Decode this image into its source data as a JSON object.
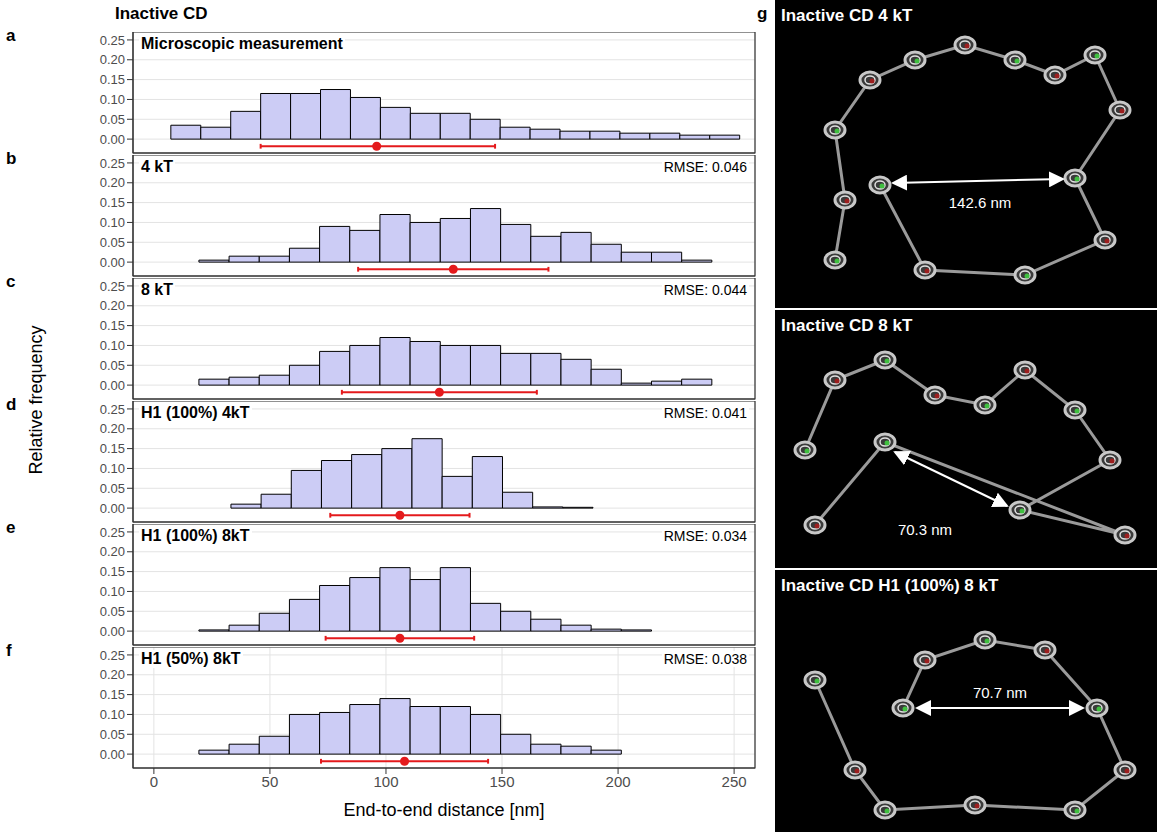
{
  "title": "Inactive CD",
  "x_label": "End-to-end distance [nm]",
  "y_label": "Relative frequency",
  "chart_data": [
    {
      "panel": "a",
      "type": "histogram",
      "title": "Microscopic measurement",
      "color": "#ccccf5",
      "grid": true,
      "tick_labels": "y",
      "bins": [
        -5.6,
        7.3,
        20.2,
        33.1,
        46.0,
        58.9,
        71.8,
        84.7,
        97.6,
        110.5,
        123.4,
        136.3,
        149.2,
        162.1,
        175.0,
        187.9,
        200.8,
        213.7,
        226.6,
        239.5,
        252.4
      ],
      "values": [
        0,
        0.035,
        0.03,
        0.07,
        0.115,
        0.115,
        0.125,
        0.105,
        0.08,
        0.065,
        0.065,
        0.05,
        0.03,
        0.025,
        0.02,
        0.02,
        0.015,
        0.015,
        0.01,
        0.01
      ],
      "mean": 96,
      "error_low": 46,
      "error_high": 147,
      "xlim": [
        -9,
        259
      ],
      "xticks": [
        0,
        50,
        100,
        150,
        200,
        250
      ],
      "ylim": [
        -0.035,
        0.27
      ],
      "yticks": [
        {
          "value": 0,
          "label": "0.00"
        },
        0.05,
        {
          "value": 0.1,
          "label": "0.10"
        },
        0.15,
        {
          "value": 0.2,
          "label": "0.20"
        },
        0.25
      ]
    },
    {
      "panel": "b",
      "type": "histogram",
      "title": "4 kT",
      "annotation": "RMSE: 0.046",
      "color": "#ccccf5",
      "grid": true,
      "tick_labels": "y",
      "bins": [
        19.4,
        32.4,
        45.4,
        58.4,
        71.4,
        84.4,
        97.4,
        110.4,
        123.4,
        136.4,
        149.4,
        162.4,
        175.4,
        188.4,
        201.4,
        214.4,
        227.4,
        240.4
      ],
      "values": [
        0.005,
        0.015,
        0.015,
        0.035,
        0.09,
        0.08,
        0.12,
        0.1,
        0.11,
        0.135,
        0.095,
        0.065,
        0.075,
        0.045,
        0.025,
        0.025,
        0.005
      ],
      "mean": 129,
      "error_low": 88,
      "error_high": 170,
      "xlim": [
        -9,
        259
      ],
      "xticks": [
        0,
        50,
        100,
        150,
        200,
        250
      ],
      "ylim": [
        -0.035,
        0.27
      ],
      "yticks": [
        {
          "value": 0,
          "label": "0.00"
        },
        0.05,
        {
          "value": 0.1,
          "label": "0.10"
        },
        0.15,
        {
          "value": 0.2,
          "label": "0.20"
        },
        0.25
      ]
    },
    {
      "panel": "c",
      "type": "histogram",
      "title": "8 kT",
      "annotation": "RMSE: 0.044",
      "color": "#ccccf5",
      "grid": true,
      "tick_labels": "y",
      "bins": [
        19.4,
        32.4,
        45.4,
        58.4,
        71.4,
        84.4,
        97.4,
        110.4,
        123.4,
        136.4,
        149.4,
        162.4,
        175.4,
        188.4,
        201.4,
        214.4,
        227.4,
        240.4
      ],
      "values": [
        0.015,
        0.02,
        0.025,
        0.05,
        0.085,
        0.1,
        0.12,
        0.11,
        0.1,
        0.1,
        0.08,
        0.08,
        0.065,
        0.04,
        0.005,
        0.01,
        0.015
      ],
      "mean": 123,
      "error_low": 81,
      "error_high": 165,
      "xlim": [
        -9,
        259
      ],
      "xticks": [
        0,
        50,
        100,
        150,
        200,
        250
      ],
      "ylim": [
        -0.035,
        0.27
      ],
      "yticks": [
        {
          "value": 0,
          "label": "0.00"
        },
        0.05,
        {
          "value": 0.1,
          "label": "0.10"
        },
        0.15,
        {
          "value": 0.2,
          "label": "0.20"
        },
        0.25
      ]
    },
    {
      "panel": "d",
      "type": "histogram",
      "title": "H1 (100%)  4kT",
      "annotation": "RMSE: 0.041",
      "color": "#ccccf5",
      "grid": true,
      "tick_labels": "y",
      "bins": [
        33.2,
        46.2,
        59.2,
        72.2,
        85.2,
        98.2,
        111.2,
        124.2,
        137.2,
        150.2,
        163.2,
        176.2,
        189.2
      ],
      "values": [
        0.01,
        0.035,
        0.095,
        0.12,
        0.135,
        0.15,
        0.175,
        0.08,
        0.13,
        0.04,
        0.003,
        0.002
      ],
      "mean": 106,
      "error_low": 76,
      "error_high": 136,
      "xlim": [
        -9,
        259
      ],
      "xticks": [
        0,
        50,
        100,
        150,
        200,
        250
      ],
      "ylim": [
        -0.035,
        0.27
      ],
      "yticks": [
        {
          "value": 0,
          "label": "0.00"
        },
        0.05,
        {
          "value": 0.1,
          "label": "0.10"
        },
        0.15,
        {
          "value": 0.2,
          "label": "0.20"
        },
        0.25
      ]
    },
    {
      "panel": "e",
      "type": "histogram",
      "title": "H1 (100%)  8kT",
      "annotation": "RMSE: 0.034",
      "color": "#ccccf5",
      "grid": true,
      "tick_labels": "y",
      "bins": [
        19.4,
        32.4,
        45.4,
        58.4,
        71.4,
        84.4,
        97.4,
        110.4,
        123.4,
        136.4,
        149.4,
        162.4,
        175.4,
        188.4,
        201.4,
        214.4
      ],
      "values": [
        0.003,
        0.015,
        0.045,
        0.08,
        0.115,
        0.135,
        0.16,
        0.13,
        0.16,
        0.07,
        0.05,
        0.03,
        0.015,
        0.005,
        0.003
      ],
      "mean": 106,
      "error_low": 74,
      "error_high": 138,
      "xlim": [
        -9,
        259
      ],
      "xticks": [
        0,
        50,
        100,
        150,
        200,
        250
      ],
      "ylim": [
        -0.035,
        0.27
      ],
      "yticks": [
        {
          "value": 0,
          "label": "0.00"
        },
        0.05,
        {
          "value": 0.1,
          "label": "0.10"
        },
        0.15,
        {
          "value": 0.2,
          "label": "0.20"
        },
        0.25
      ]
    },
    {
      "panel": "f",
      "type": "histogram",
      "title": "H1 (50%)  8kT",
      "annotation": "RMSE: 0.038",
      "color": "#ccccf5",
      "grid": true,
      "bins": [
        19.4,
        32.4,
        45.4,
        58.4,
        71.4,
        84.4,
        97.4,
        110.4,
        123.4,
        136.4,
        149.4,
        162.4,
        175.4,
        188.4,
        201.4
      ],
      "values": [
        0.01,
        0.025,
        0.045,
        0.1,
        0.105,
        0.125,
        0.14,
        0.12,
        0.12,
        0.1,
        0.05,
        0.025,
        0.02,
        0.01
      ],
      "mean": 108,
      "error_low": 72,
      "error_high": 144,
      "xlim": [
        -9,
        259
      ],
      "xticks": [
        0,
        50,
        100,
        150,
        200,
        250
      ],
      "ylim": [
        -0.035,
        0.27
      ],
      "yticks": [
        {
          "value": 0,
          "label": "0.00"
        },
        0.05,
        {
          "value": 0.1,
          "label": "0.10"
        },
        0.15,
        {
          "value": 0.2,
          "label": "0.20"
        },
        0.25
      ]
    }
  ],
  "panel_g": {
    "letter": "g",
    "images": [
      {
        "title": "Inactive CD 4 kT",
        "distance": "142.6 nm"
      },
      {
        "title": "Inactive CD 8 kT",
        "distance": "70.3 nm"
      },
      {
        "title": "Inactive CD H1 (100%) 8 kT",
        "distance": "70.7 nm"
      }
    ]
  }
}
